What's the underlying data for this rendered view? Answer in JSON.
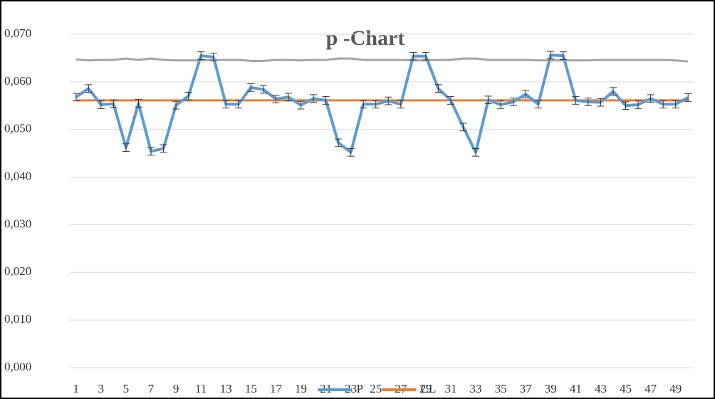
{
  "chart_data": {
    "type": "line",
    "title": "p -Chart",
    "categories": [
      "1",
      null,
      "3",
      null,
      "5",
      null,
      "7",
      null,
      "9",
      null,
      "11",
      null,
      "13",
      null,
      "15",
      null,
      "17",
      null,
      "19",
      null,
      "21",
      null,
      "23",
      null,
      "25",
      null,
      "27",
      null,
      "29",
      null,
      "31",
      null,
      "33",
      null,
      "35",
      null,
      "37",
      null,
      "39",
      null,
      "41",
      null,
      "43",
      null,
      "45",
      null,
      "47",
      null,
      "49",
      null
    ],
    "series": [
      {
        "name": "P",
        "color": "#5b9bd5",
        "values": [
          0.0568,
          0.0586,
          0.0552,
          0.0554,
          0.0462,
          0.0555,
          0.0454,
          0.046,
          0.0551,
          0.057,
          0.0655,
          0.0652,
          0.0553,
          0.0553,
          0.0588,
          0.0584,
          0.0564,
          0.0568,
          0.0551,
          0.0565,
          0.0561,
          0.0472,
          0.0452,
          0.0553,
          0.0553,
          0.056,
          0.0553,
          0.0654,
          0.0654,
          0.0586,
          0.0561,
          0.0505,
          0.0452,
          0.0562,
          0.0552,
          0.0558,
          0.0574,
          0.0553,
          0.0656,
          0.0655,
          0.0561,
          0.0558,
          0.0557,
          0.058,
          0.055,
          0.0552,
          0.0565,
          0.0553,
          0.0553,
          0.0567
        ],
        "errors": [
          0.0008,
          0.0008,
          0.0008,
          0.0008,
          0.0008,
          0.0008,
          0.0008,
          0.0008,
          0.0008,
          0.0008,
          0.0008,
          0.0008,
          0.0008,
          0.0008,
          0.0008,
          0.0008,
          0.0008,
          0.0008,
          0.0008,
          0.0008,
          0.0008,
          0.0008,
          0.0008,
          0.0008,
          0.0008,
          0.0008,
          0.0008,
          0.0008,
          0.0008,
          0.0008,
          0.0008,
          0.0008,
          0.0008,
          0.0008,
          0.0008,
          0.0008,
          0.0008,
          0.0008,
          0.0008,
          0.0008,
          0.0008,
          0.0008,
          0.0008,
          0.0008,
          0.0008,
          0.0008,
          0.0008,
          0.0008,
          0.0008,
          0.0008
        ]
      },
      {
        "name": "CL",
        "color": "#ed7d31",
        "values": [
          0.0561,
          0.0561,
          0.0561,
          0.0561,
          0.0561,
          0.0561,
          0.0561,
          0.0561,
          0.0561,
          0.0561,
          0.0561,
          0.0561,
          0.0561,
          0.0561,
          0.0561,
          0.0561,
          0.0561,
          0.0561,
          0.0561,
          0.0561,
          0.0561,
          0.0561,
          0.0561,
          0.0561,
          0.0561,
          0.0561,
          0.0561,
          0.0561,
          0.0561,
          0.0561,
          0.0561,
          0.0561,
          0.0561,
          0.0561,
          0.0561,
          0.0561,
          0.0561,
          0.0561,
          0.0561,
          0.0561,
          0.0561,
          0.0561,
          0.0561,
          0.0561,
          0.0561,
          0.0561,
          0.0561,
          0.0561,
          0.0561,
          0.0561
        ]
      },
      {
        "color": "#a5a5a5",
        "values": [
          0.0647,
          0.0645,
          0.0646,
          0.0646,
          0.0649,
          0.0646,
          0.0649,
          0.0646,
          0.0645,
          0.0645,
          0.0645,
          0.0646,
          0.0646,
          0.0646,
          0.0644,
          0.0644,
          0.0646,
          0.0646,
          0.0645,
          0.0646,
          0.0646,
          0.0649,
          0.0649,
          0.0646,
          0.0646,
          0.0646,
          0.0646,
          0.0645,
          0.0645,
          0.0646,
          0.0646,
          0.0649,
          0.0649,
          0.0646,
          0.0646,
          0.0646,
          0.0646,
          0.0645,
          0.0645,
          0.0645,
          0.0645,
          0.0645,
          0.0646,
          0.0646,
          0.0646,
          0.0646,
          0.0646,
          0.0646,
          0.0645,
          0.0643
        ]
      }
    ],
    "ylim": [
      0,
      0.07
    ],
    "yticks": [
      {
        "value": 0,
        "label": "0,000"
      },
      {
        "value": 0.01,
        "label": "0,010"
      },
      {
        "value": 0.02,
        "label": "0,020"
      },
      {
        "value": 0.03,
        "label": "0,030"
      },
      {
        "value": 0.04,
        "label": "0,040"
      },
      {
        "value": 0.05,
        "label": "0,050"
      },
      {
        "value": 0.06,
        "label": "0,060"
      },
      {
        "value": 0.07,
        "label": "0,070"
      }
    ],
    "grid": true,
    "legend": "bottom"
  }
}
